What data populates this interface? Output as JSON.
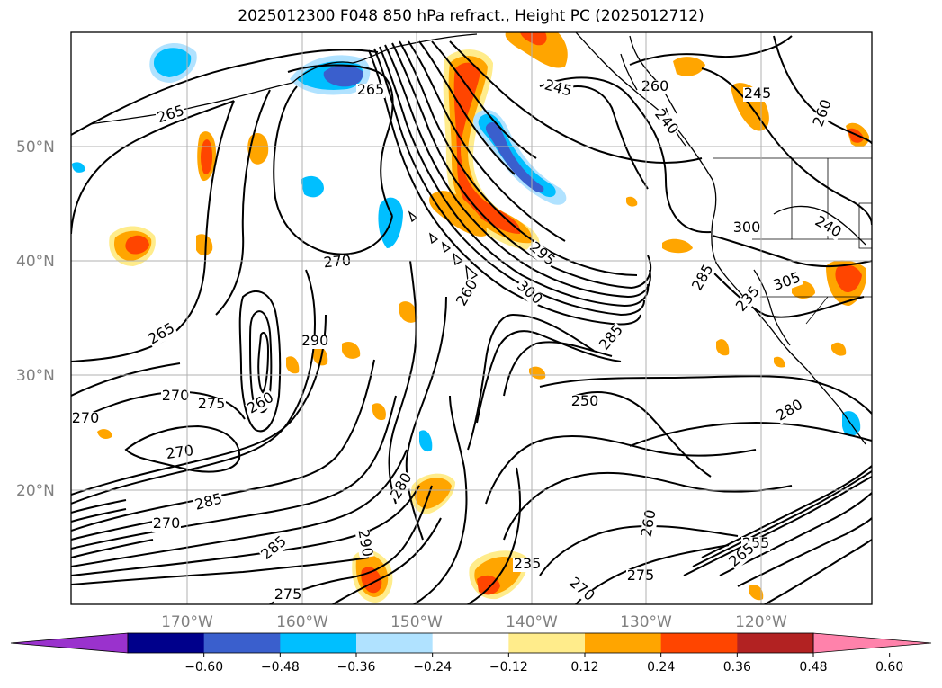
{
  "title": "2025012300 F048 850 hPa refract., Height PC (2025012712)",
  "lat_labels": [
    "50°N",
    "40°N",
    "30°N",
    "20°N"
  ],
  "lon_labels": [
    "170°W",
    "160°W",
    "150°W",
    "140°W",
    "130°W",
    "120°W"
  ],
  "contour_labels": [
    "265",
    "265",
    "245",
    "260",
    "265",
    "270",
    "270",
    "275",
    "270",
    "270",
    "290",
    "285",
    "270",
    "285",
    "275",
    "290",
    "280",
    "295",
    "300",
    "260",
    "285",
    "250",
    "260",
    "275",
    "270",
    "235",
    "255",
    "265",
    "280",
    "285",
    "300",
    "305",
    "235",
    "240",
    "260",
    "245",
    "240",
    "260"
  ],
  "colorbar": {
    "ticks": [
      "−0.60",
      "−0.48",
      "−0.36",
      "−0.24",
      "−0.12",
      "0.12",
      "0.24",
      "0.36",
      "0.48",
      "0.60"
    ],
    "colors": [
      "#9a32cd",
      "#00008b",
      "#3a5fcd",
      "#00bfff",
      "#b0e2ff",
      "#ffffff",
      "#ffec8b",
      "#ffa500",
      "#ff4500",
      "#b22222",
      "#ff82ab"
    ]
  }
}
